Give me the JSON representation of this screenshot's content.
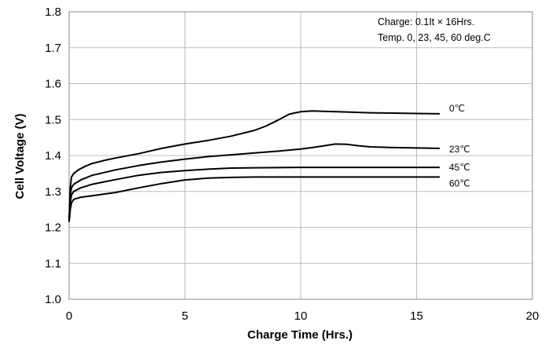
{
  "chart_data": {
    "type": "line",
    "xlabel": "Charge Time (Hrs.)",
    "ylabel": "Cell Voltage (V)",
    "xlim": [
      0,
      20
    ],
    "ylim": [
      1.0,
      1.8
    ],
    "x_ticks": [
      "0",
      "5",
      "10",
      "15",
      "20"
    ],
    "y_ticks": [
      "1.0",
      "1.1",
      "1.2",
      "1.3",
      "1.4",
      "1.5",
      "1.6",
      "1.7",
      "1.8"
    ],
    "grid": true,
    "annotations": [
      "Charge: 0.1It × 16Hrs.",
      "Temp. 0, 23, 45, 60 deg.C"
    ],
    "series": [
      {
        "name": "0℃",
        "x": [
          0,
          0.05,
          0.1,
          0.2,
          0.4,
          0.7,
          1,
          1.5,
          2,
          3,
          4,
          5,
          6,
          7,
          8,
          8.5,
          9,
          9.5,
          10,
          10.5,
          11,
          12,
          13,
          14,
          15,
          16
        ],
        "y": [
          1.22,
          1.31,
          1.34,
          1.35,
          1.36,
          1.37,
          1.378,
          1.386,
          1.393,
          1.405,
          1.42,
          1.432,
          1.442,
          1.454,
          1.47,
          1.482,
          1.498,
          1.515,
          1.522,
          1.524,
          1.523,
          1.521,
          1.519,
          1.518,
          1.517,
          1.516
        ]
      },
      {
        "name": "23℃",
        "x": [
          0,
          0.05,
          0.1,
          0.2,
          0.5,
          1,
          2,
          3,
          4,
          5,
          6,
          7,
          8,
          9,
          10,
          10.5,
          11,
          11.5,
          12,
          12.5,
          13,
          14,
          15,
          16
        ],
        "y": [
          1.22,
          1.29,
          1.31,
          1.32,
          1.332,
          1.345,
          1.36,
          1.372,
          1.382,
          1.39,
          1.397,
          1.402,
          1.407,
          1.412,
          1.418,
          1.422,
          1.427,
          1.432,
          1.431,
          1.427,
          1.424,
          1.422,
          1.421,
          1.42
        ]
      },
      {
        "name": "45℃",
        "x": [
          0,
          0.05,
          0.1,
          0.2,
          0.5,
          1,
          2,
          3,
          4,
          5,
          6,
          7,
          8,
          10,
          12,
          14,
          16
        ],
        "y": [
          1.22,
          1.27,
          1.29,
          1.3,
          1.31,
          1.32,
          1.333,
          1.345,
          1.353,
          1.358,
          1.362,
          1.365,
          1.366,
          1.367,
          1.367,
          1.367,
          1.367
        ]
      },
      {
        "name": "60℃",
        "x": [
          0,
          0.05,
          0.1,
          0.2,
          0.5,
          1,
          2,
          3,
          4,
          5,
          6,
          7,
          8,
          10,
          12,
          14,
          16
        ],
        "y": [
          1.215,
          1.25,
          1.268,
          1.278,
          1.284,
          1.288,
          1.297,
          1.31,
          1.322,
          1.332,
          1.337,
          1.339,
          1.34,
          1.34,
          1.34,
          1.34,
          1.34
        ]
      }
    ]
  }
}
